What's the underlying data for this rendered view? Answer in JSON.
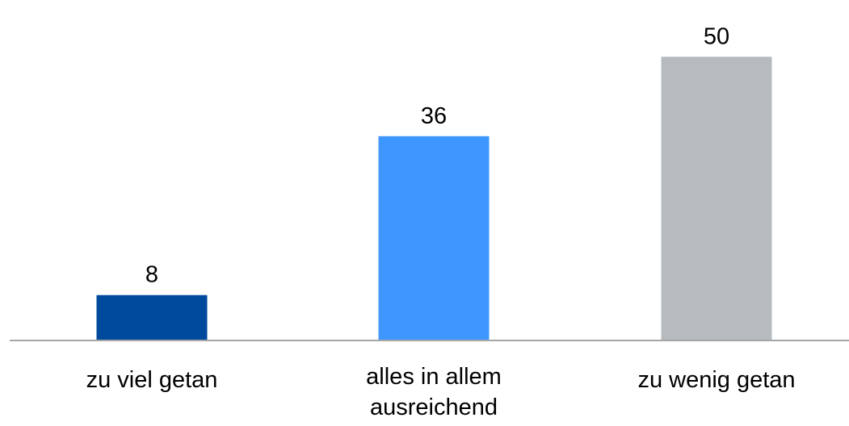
{
  "chart_data": {
    "type": "bar",
    "categories": [
      [
        "zu viel getan"
      ],
      [
        "alles in allem",
        "ausreichend"
      ],
      [
        "zu wenig getan"
      ]
    ],
    "values": [
      8,
      36,
      50
    ],
    "value_labels": [
      "8",
      "36",
      "50"
    ],
    "ylim": [
      0,
      60
    ],
    "grid": false,
    "legend": "none",
    "colors": [
      "#004a9e",
      "#3d97ff",
      "#b6bbbf"
    ],
    "axis_color": "#a6a6a6"
  }
}
